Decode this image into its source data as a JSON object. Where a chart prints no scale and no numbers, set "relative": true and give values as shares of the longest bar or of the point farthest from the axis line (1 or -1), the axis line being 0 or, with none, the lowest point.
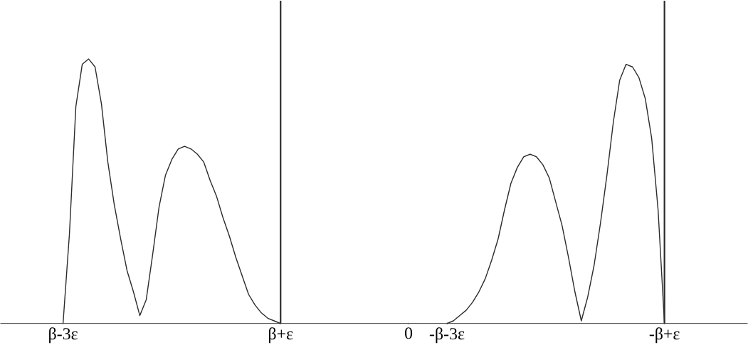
{
  "chart_data": {
    "type": "line",
    "relative": true,
    "marker": "none",
    "line_style": "solid",
    "grid": false,
    "categories": [
      null,
      null,
      null,
      null,
      null,
      null,
      null,
      null,
      "β-3ε",
      null,
      null,
      null,
      null,
      null,
      null,
      null,
      null,
      null,
      null,
      null,
      null,
      null,
      null,
      null,
      null,
      null,
      null,
      null,
      null,
      null,
      null,
      null,
      null,
      null,
      null,
      null,
      null,
      null,
      null,
      null,
      null,
      null,
      "β+ε",
      null,
      null,
      null,
      null,
      null,
      null,
      null,
      null,
      null,
      null,
      null,
      null,
      null,
      null,
      null,
      null,
      null,
      null,
      null,
      "0",
      null,
      null,
      null,
      null,
      null,
      "-β-3ε",
      null,
      null,
      null,
      null,
      null,
      null,
      null,
      null,
      null,
      null,
      null,
      null,
      null,
      null,
      null,
      null,
      null,
      null,
      null,
      null,
      null,
      null,
      null,
      null,
      null,
      null,
      null,
      null,
      null,
      null,
      null,
      null,
      null,
      "-β+ε",
      null,
      null,
      null,
      null,
      null,
      null,
      null,
      null,
      null,
      null,
      null,
      null,
      null
    ],
    "series": [
      {
        "color": "#2b2b2b",
        "values": [
          null,
          null,
          null,
          null,
          null,
          null,
          null,
          null,
          0,
          0.34,
          0.82,
          0.98,
          1,
          0.97,
          0.83,
          0.61,
          0.45,
          0.32,
          0.2,
          0.12,
          0.03,
          0.09,
          0.26,
          0.44,
          0.56,
          0.62,
          0.66,
          0.67,
          0.66,
          0.64,
          0.61,
          0.54,
          0.48,
          0.4,
          0.33,
          0.25,
          0.18,
          0.11,
          0.07,
          0.04,
          0.02,
          0.01,
          0,
          null,
          null,
          null,
          null,
          null,
          null,
          null,
          null,
          null,
          null,
          null,
          null,
          null,
          null,
          null,
          null,
          null,
          null,
          null,
          null,
          null,
          null,
          null,
          null,
          null,
          0,
          0.01,
          0.03,
          0.05,
          0.08,
          0.12,
          0.17,
          0.24,
          0.32,
          0.43,
          0.53,
          0.59,
          0.63,
          0.64,
          0.63,
          0.6,
          0.55,
          0.46,
          0.37,
          0.25,
          0.12,
          0.01,
          0.1,
          0.22,
          0.38,
          0.56,
          0.76,
          0.92,
          0.98,
          0.97,
          0.93,
          0.85,
          0.7,
          0.43,
          0,
          null,
          null,
          null,
          null,
          null,
          null,
          null,
          null,
          null,
          null,
          null,
          null,
          null
        ]
      }
    ],
    "ref_lines": [
      {
        "axis": "x",
        "value": "β+ε",
        "color": "#2b2b2b"
      },
      {
        "axis": "x",
        "value": "-β+ε",
        "color": "#2b2b2b"
      }
    ]
  }
}
